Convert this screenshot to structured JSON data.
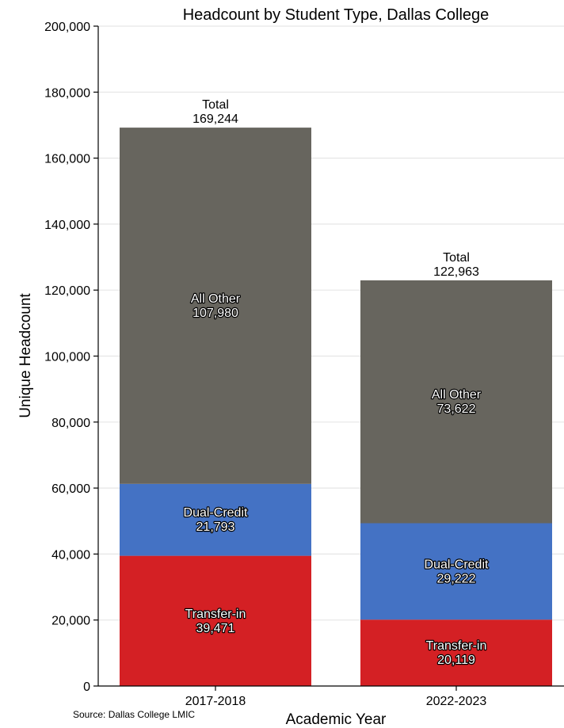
{
  "chart_data": {
    "type": "bar",
    "stacked": true,
    "title": "Headcount by Student Type, Dallas College",
    "xlabel": "Academic Year",
    "ylabel": "Unique Headcount",
    "source": "Source: Dallas College LMIC",
    "ylim": [
      0,
      200000
    ],
    "yticks": [
      0,
      20000,
      40000,
      60000,
      80000,
      100000,
      120000,
      140000,
      160000,
      180000,
      200000
    ],
    "ytick_labels": [
      "0",
      "20,000",
      "40,000",
      "60,000",
      "80,000",
      "100,000",
      "120,000",
      "140,000",
      "160,000",
      "180,000",
      "200,000"
    ],
    "grid": "horizontal",
    "categories": [
      "2017-2018",
      "2022-2023"
    ],
    "series": [
      {
        "name": "Transfer-in",
        "color": "#d42024",
        "values": [
          39471,
          20119
        ],
        "labels": [
          "39,471",
          "20,119"
        ]
      },
      {
        "name": "Dual-Credit",
        "color": "#4472c4",
        "values": [
          21793,
          29222
        ],
        "labels": [
          "21,793",
          "29,222"
        ]
      },
      {
        "name": "All Other",
        "color": "#67655e",
        "values": [
          107980,
          73622
        ],
        "labels": [
          "107,980",
          "73,622"
        ]
      }
    ],
    "total_label": "Total",
    "totals": [
      169244,
      122963
    ],
    "total_labels": [
      "169,244",
      "122,963"
    ]
  }
}
